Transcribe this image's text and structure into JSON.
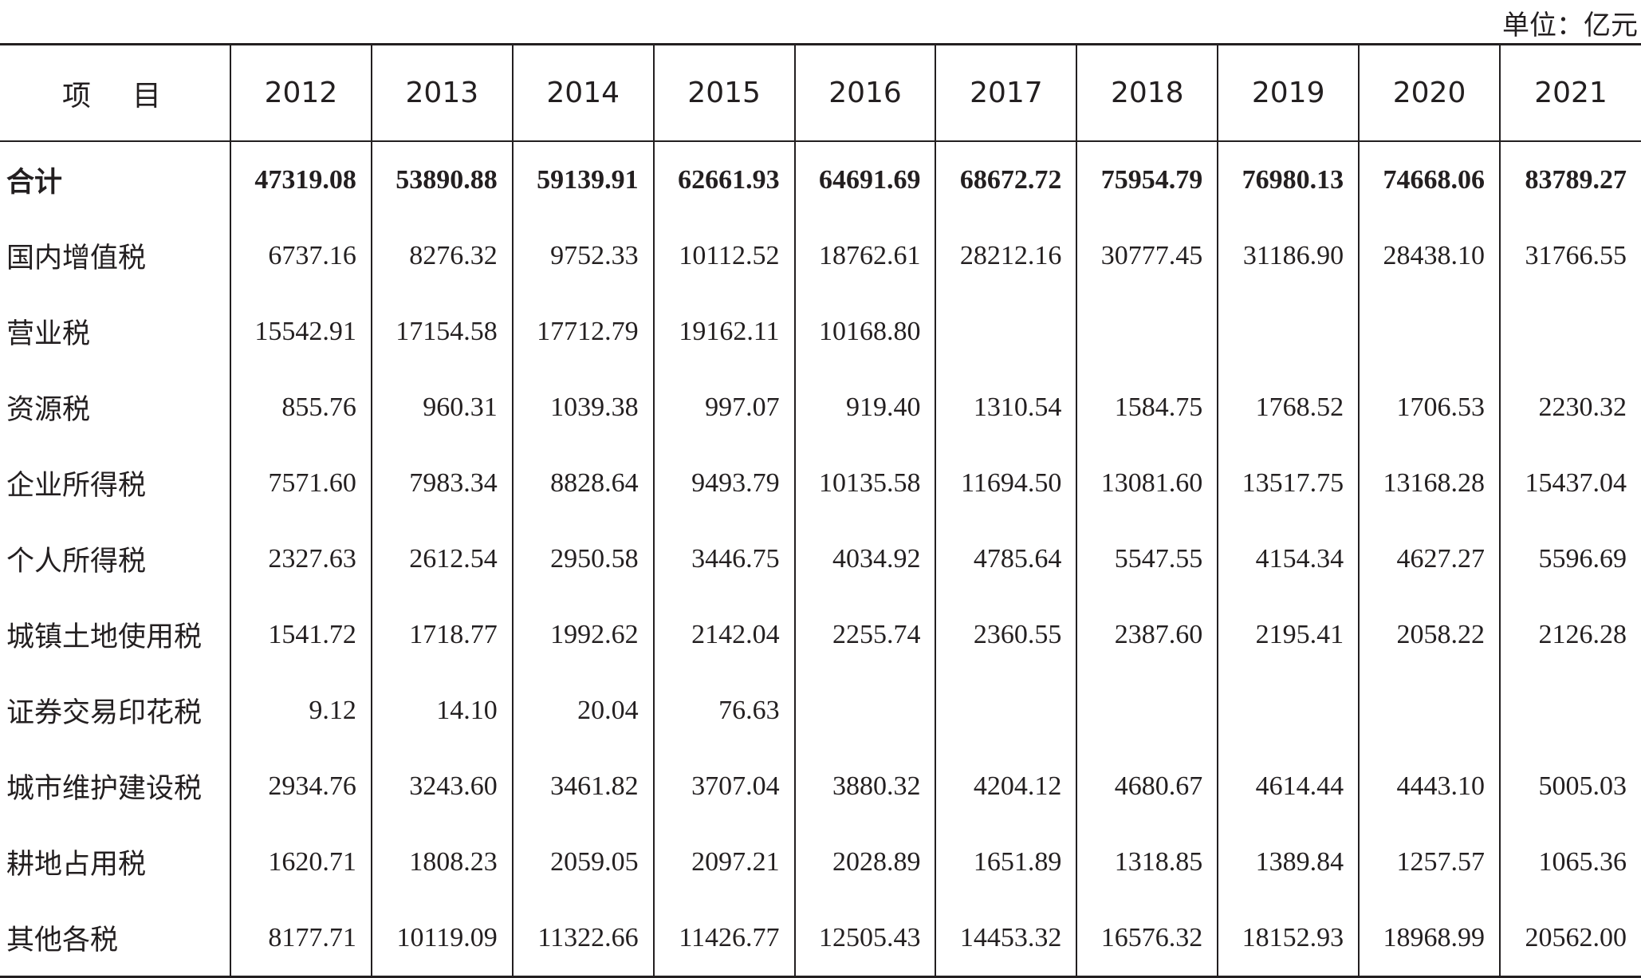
{
  "header": {
    "unit": "单位：亿元"
  },
  "table": {
    "columns": [
      "项　目",
      "2012",
      "2013",
      "2014",
      "2015",
      "2016",
      "2017",
      "2018",
      "2019",
      "2020",
      "2021"
    ],
    "rows": [
      [
        "合计",
        "47319.08",
        "53890.88",
        "59139.91",
        "62661.93",
        "64691.69",
        "68672.72",
        "75954.79",
        "76980.13",
        "74668.06",
        "83789.27"
      ],
      [
        "国内增值税",
        "6737.16",
        "8276.32",
        "9752.33",
        "10112.52",
        "18762.61",
        "28212.16",
        "30777.45",
        "31186.90",
        "28438.10",
        "31766.55"
      ],
      [
        "营业税",
        "15542.91",
        "17154.58",
        "17712.79",
        "19162.11",
        "10168.80",
        null,
        null,
        null,
        null,
        null
      ],
      [
        "资源税",
        "855.76",
        "960.31",
        "1039.38",
        "997.07",
        "919.40",
        "1310.54",
        "1584.75",
        "1768.52",
        "1706.53",
        "2230.32"
      ],
      [
        "企业所得税",
        "7571.60",
        "7983.34",
        "8828.64",
        "9493.79",
        "10135.58",
        "11694.50",
        "13081.60",
        "13517.75",
        "13168.28",
        "15437.04"
      ],
      [
        "个人所得税",
        "2327.63",
        "2612.54",
        "2950.58",
        "3446.75",
        "4034.92",
        "4785.64",
        "5547.55",
        "4154.34",
        "4627.27",
        "5596.69"
      ],
      [
        "城镇土地使用税",
        "1541.72",
        "1718.77",
        "1992.62",
        "2142.04",
        "2255.74",
        "2360.55",
        "2387.60",
        "2195.41",
        "2058.22",
        "2126.28"
      ],
      [
        "证券交易印花税",
        "9.12",
        "14.10",
        "20.04",
        "76.63",
        null,
        null,
        null,
        null,
        null,
        null
      ],
      [
        "城市维护建设税",
        "2934.76",
        "3243.60",
        "3461.82",
        "3707.04",
        "3880.32",
        "4204.12",
        "4680.67",
        "4614.44",
        "4443.10",
        "5005.03"
      ],
      [
        "耕地占用税",
        "1620.71",
        "1808.23",
        "2059.05",
        "2097.21",
        "2028.89",
        "1651.89",
        "1318.85",
        "1389.84",
        "1257.57",
        "1065.36"
      ],
      [
        "其他各税",
        "8177.71",
        "10119.09",
        "11322.66",
        "11426.77",
        "12505.43",
        "14453.32",
        "16576.32",
        "18152.93",
        "18968.99",
        "20562.00"
      ]
    ]
  }
}
